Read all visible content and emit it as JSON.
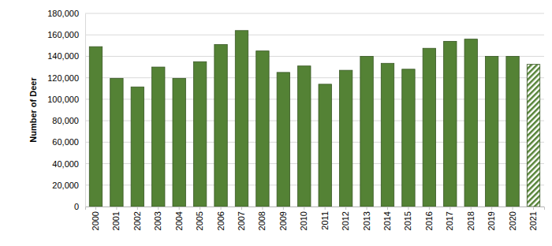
{
  "chart_data": {
    "type": "bar",
    "y_label": "Number of Deer",
    "categories": [
      "2000",
      "2001",
      "2002",
      "2003",
      "2004",
      "2005",
      "2006",
      "2007",
      "2008",
      "2009",
      "2010",
      "2011",
      "2012",
      "2013",
      "2014",
      "2015",
      "2016",
      "2017",
      "2018",
      "2019",
      "2020",
      "2021"
    ],
    "values": [
      149000,
      119500,
      111500,
      130000,
      119500,
      135000,
      151000,
      164000,
      145000,
      125000,
      131000,
      114000,
      127000,
      140000,
      133500,
      128000,
      147500,
      154000,
      156000,
      140000,
      140000,
      132500
    ],
    "color": "#548235",
    "ylim": [
      0,
      180000
    ],
    "yticks": [
      0,
      {
        "value": 20000,
        "label": "20,000"
      },
      {
        "value": 40000,
        "label": "40,000"
      },
      {
        "value": 60000,
        "label": "60,000"
      },
      {
        "value": 80000,
        "label": "80,000"
      },
      {
        "value": 100000,
        "label": "100,000"
      },
      {
        "value": 120000,
        "label": "120,000"
      },
      {
        "value": 140000,
        "label": "140,000"
      },
      {
        "value": 160000,
        "label": "160,000"
      },
      {
        "value": 180000,
        "label": "180,000"
      }
    ],
    "grid": true
  }
}
